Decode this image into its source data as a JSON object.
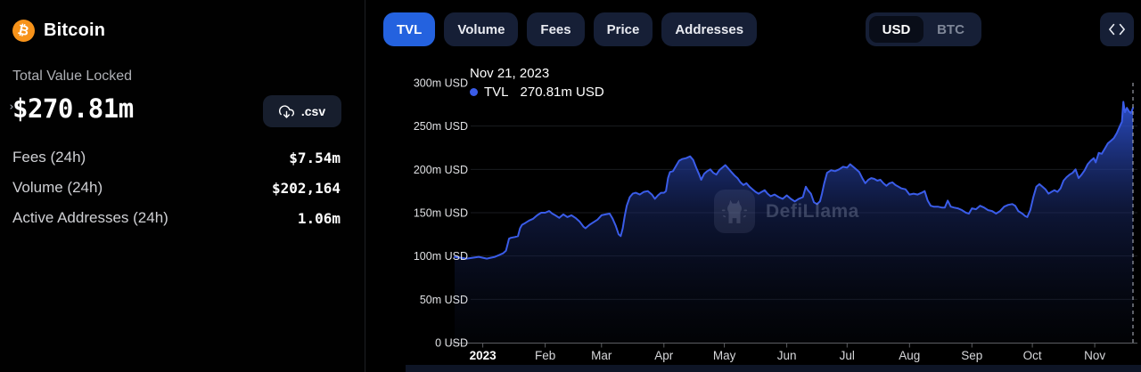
{
  "page": {
    "background": "#000000",
    "accent_blue": "#2462df",
    "line_blue": "#3a5ce8",
    "bitcoin_orange": "#f7931a"
  },
  "sidebar": {
    "coin": {
      "name": "Bitcoin",
      "symbol": "₿"
    },
    "tvl": {
      "label": "Total Value Locked",
      "value": "$270.81m"
    },
    "csv_button": {
      "label": ".csv"
    },
    "stats": [
      {
        "label": "Fees (24h)",
        "value": "$7.54m",
        "chevron": false
      },
      {
        "label": "Volume (24h)",
        "value": "$202,164",
        "chevron": true
      },
      {
        "label": "Active Addresses (24h)",
        "value": "1.06m",
        "chevron": true
      }
    ]
  },
  "toolbar": {
    "tabs": [
      {
        "label": "TVL",
        "active": true
      },
      {
        "label": "Volume",
        "active": false
      },
      {
        "label": "Fees",
        "active": false
      },
      {
        "label": "Price",
        "active": false
      },
      {
        "label": "Addresses",
        "active": false
      }
    ],
    "denominations": [
      {
        "label": "USD",
        "active": true
      },
      {
        "label": "BTC",
        "active": false
      }
    ]
  },
  "chart_data": {
    "type": "area",
    "title": "Bitcoin TVL",
    "unit": "m USD",
    "watermark": "DefiLlama",
    "grid": true,
    "legend_position": "tooltip-top-left",
    "tooltip": {
      "date": "Nov 21, 2023",
      "series": "TVL",
      "value": "270.81m USD"
    },
    "ylim_musd": [
      0,
      300
    ],
    "y_ticks": [
      {
        "label": "0 USD",
        "value": 0
      },
      {
        "label": "50m USD",
        "value": 50
      },
      {
        "label": "100m USD",
        "value": 100
      },
      {
        "label": "150m USD",
        "value": 150
      },
      {
        "label": "200m USD",
        "value": 200
      },
      {
        "label": "250m USD",
        "value": 250
      },
      {
        "label": "300m USD",
        "value": 300
      }
    ],
    "x_ticks": [
      {
        "label": "2023",
        "day": 0,
        "bold": true
      },
      {
        "label": "Feb",
        "day": 31,
        "bold": false
      },
      {
        "label": "Mar",
        "day": 59,
        "bold": false
      },
      {
        "label": "Apr",
        "day": 90,
        "bold": false
      },
      {
        "label": "May",
        "day": 120,
        "bold": false
      },
      {
        "label": "Jun",
        "day": 151,
        "bold": false
      },
      {
        "label": "Jul",
        "day": 181,
        "bold": false
      },
      {
        "label": "Aug",
        "day": 212,
        "bold": false
      },
      {
        "label": "Sep",
        "day": 243,
        "bold": false
      },
      {
        "label": "Oct",
        "day": 273,
        "bold": false
      },
      {
        "label": "Nov",
        "day": 304,
        "bold": false
      }
    ],
    "series": [
      {
        "name": "TVL",
        "color": "#3a5ce8",
        "points_day_musd": [
          [
            -14,
            99
          ],
          [
            -11,
            98
          ],
          [
            -8,
            97
          ],
          [
            -5,
            98
          ],
          [
            -2,
            99
          ],
          [
            0,
            98
          ],
          [
            2,
            97
          ],
          [
            4,
            98
          ],
          [
            6,
            99
          ],
          [
            8,
            101
          ],
          [
            10,
            103
          ],
          [
            11.5,
            106
          ],
          [
            12.5,
            115
          ],
          [
            13,
            120
          ],
          [
            14,
            121
          ],
          [
            16,
            122
          ],
          [
            17.5,
            123
          ],
          [
            18.5,
            132
          ],
          [
            19.5,
            136
          ],
          [
            21,
            138
          ],
          [
            23,
            141
          ],
          [
            25,
            143
          ],
          [
            27,
            147
          ],
          [
            29,
            150
          ],
          [
            31,
            150
          ],
          [
            33,
            152
          ],
          [
            34.5,
            149
          ],
          [
            36,
            147
          ],
          [
            38,
            144
          ],
          [
            40,
            148
          ],
          [
            42,
            145
          ],
          [
            44,
            147
          ],
          [
            46,
            144
          ],
          [
            48,
            140
          ],
          [
            50,
            134
          ],
          [
            51,
            132
          ],
          [
            53,
            136
          ],
          [
            55,
            139
          ],
          [
            57,
            142
          ],
          [
            59,
            147
          ],
          [
            61,
            148
          ],
          [
            63,
            149
          ],
          [
            64.5,
            143
          ],
          [
            66,
            135
          ],
          [
            67.5,
            125
          ],
          [
            68.5,
            123
          ],
          [
            69.5,
            132
          ],
          [
            70.5,
            146
          ],
          [
            71.5,
            158
          ],
          [
            73,
            168
          ],
          [
            74.5,
            172
          ],
          [
            76,
            173
          ],
          [
            78,
            171
          ],
          [
            80,
            174
          ],
          [
            82,
            175
          ],
          [
            84,
            171
          ],
          [
            85.5,
            166
          ],
          [
            87,
            170
          ],
          [
            88.5,
            173
          ],
          [
            90,
            173
          ],
          [
            91,
            175
          ],
          [
            92,
            190
          ],
          [
            93,
            197
          ],
          [
            94.5,
            198
          ],
          [
            96,
            204
          ],
          [
            97.5,
            210
          ],
          [
            99,
            212
          ],
          [
            101,
            213
          ],
          [
            103,
            215
          ],
          [
            104.5,
            211
          ],
          [
            106,
            202
          ],
          [
            107.5,
            194
          ],
          [
            108.5,
            188
          ],
          [
            110,
            195
          ],
          [
            111.5,
            198
          ],
          [
            113,
            200
          ],
          [
            114.5,
            196
          ],
          [
            116,
            194
          ],
          [
            117.5,
            199
          ],
          [
            119,
            202
          ],
          [
            120.5,
            205
          ],
          [
            122,
            201
          ],
          [
            123.5,
            197
          ],
          [
            125,
            193
          ],
          [
            126.5,
            190
          ],
          [
            128,
            185
          ],
          [
            129.5,
            182
          ],
          [
            131,
            184
          ],
          [
            132.5,
            180
          ],
          [
            134,
            177
          ],
          [
            135.5,
            174
          ],
          [
            137,
            172
          ],
          [
            138.5,
            174
          ],
          [
            140,
            176
          ],
          [
            141.5,
            172
          ],
          [
            143,
            169
          ],
          [
            145,
            171
          ],
          [
            147,
            168
          ],
          [
            149,
            166
          ],
          [
            151,
            170
          ],
          [
            153,
            166
          ],
          [
            155,
            163
          ],
          [
            157,
            166
          ],
          [
            159,
            168
          ],
          [
            160.5,
            180
          ],
          [
            161.5,
            176
          ],
          [
            163,
            172
          ],
          [
            164.5,
            162
          ],
          [
            166,
            160
          ],
          [
            167.5,
            163
          ],
          [
            168.5,
            172
          ],
          [
            169.5,
            183
          ],
          [
            171,
            196
          ],
          [
            173,
            199
          ],
          [
            175,
            198
          ],
          [
            177,
            200
          ],
          [
            179,
            203
          ],
          [
            181,
            202
          ],
          [
            182.5,
            206
          ],
          [
            184,
            203
          ],
          [
            185.5,
            200
          ],
          [
            187,
            197
          ],
          [
            188.5,
            190
          ],
          [
            190,
            184
          ],
          [
            191.5,
            188
          ],
          [
            193,
            190
          ],
          [
            194.5,
            189
          ],
          [
            196,
            187
          ],
          [
            197.5,
            188
          ],
          [
            199,
            184
          ],
          [
            200.5,
            181
          ],
          [
            202,
            184
          ],
          [
            203.5,
            185
          ],
          [
            205,
            182
          ],
          [
            206.5,
            180
          ],
          [
            208,
            178
          ],
          [
            210,
            177
          ],
          [
            212,
            171
          ],
          [
            214,
            172
          ],
          [
            216,
            171
          ],
          [
            218,
            173
          ],
          [
            219.5,
            175
          ],
          [
            221,
            164
          ],
          [
            222.5,
            158
          ],
          [
            224,
            157
          ],
          [
            226,
            157
          ],
          [
            228,
            156
          ],
          [
            229.5,
            156
          ],
          [
            231,
            164
          ],
          [
            232.5,
            157
          ],
          [
            234,
            156
          ],
          [
            236,
            155
          ],
          [
            238,
            153
          ],
          [
            240,
            150
          ],
          [
            241.5,
            149
          ],
          [
            243,
            155
          ],
          [
            245,
            154
          ],
          [
            247,
            158
          ],
          [
            249,
            156
          ],
          [
            251,
            153
          ],
          [
            253,
            152
          ],
          [
            255,
            149
          ],
          [
            257,
            152
          ],
          [
            259,
            157
          ],
          [
            261,
            159
          ],
          [
            263,
            160
          ],
          [
            264.5,
            158
          ],
          [
            266,
            152
          ],
          [
            268,
            149
          ],
          [
            269.5,
            146
          ],
          [
            270.5,
            145
          ],
          [
            272,
            153
          ],
          [
            273.5,
            168
          ],
          [
            275,
            180
          ],
          [
            276.5,
            183
          ],
          [
            278,
            180
          ],
          [
            279.5,
            177
          ],
          [
            281,
            172
          ],
          [
            282.5,
            174
          ],
          [
            284,
            176
          ],
          [
            285.5,
            174
          ],
          [
            287,
            178
          ],
          [
            288.5,
            187
          ],
          [
            290,
            191
          ],
          [
            291.5,
            194
          ],
          [
            293,
            196
          ],
          [
            294.5,
            200
          ],
          [
            296,
            190
          ],
          [
            297.5,
            194
          ],
          [
            299,
            199
          ],
          [
            300.5,
            206
          ],
          [
            302,
            210
          ],
          [
            303.5,
            213
          ],
          [
            304.5,
            208
          ],
          [
            306,
            219
          ],
          [
            307.5,
            218
          ],
          [
            309,
            224
          ],
          [
            310.5,
            230
          ],
          [
            312,
            233
          ],
          [
            313.5,
            236
          ],
          [
            315,
            242
          ],
          [
            316.5,
            250
          ],
          [
            317.5,
            255
          ],
          [
            318.2,
            278
          ],
          [
            319,
            266
          ],
          [
            320,
            271
          ],
          [
            321,
            267
          ],
          [
            322,
            265
          ],
          [
            323,
            271
          ]
        ]
      }
    ]
  }
}
